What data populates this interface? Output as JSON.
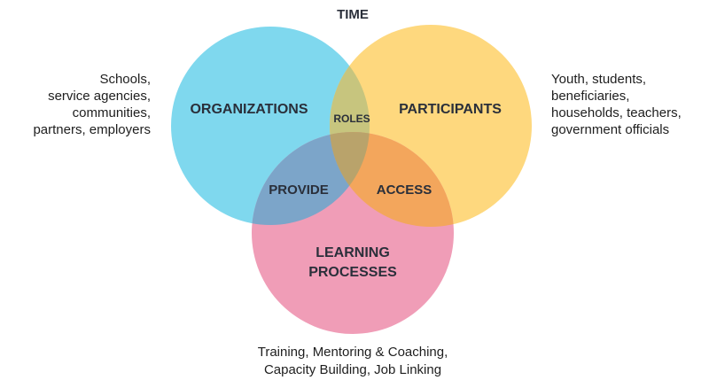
{
  "diagram": {
    "top_label": "TIME",
    "sets": {
      "organizations": {
        "label": "ORGANIZATIONS",
        "color": "#7fd8ee",
        "description": [
          "Schools,",
          "service agencies,",
          "communities,",
          "partners, employers"
        ]
      },
      "participants": {
        "label": "PARTICIPANTS",
        "color": "#fed87e",
        "description": [
          "Youth, students,",
          "beneficiaries,",
          "households, teachers,",
          "government officials"
        ]
      },
      "learning_processes": {
        "label": [
          "LEARNING",
          "PROCESSES"
        ],
        "color": "#f09db7",
        "description": [
          "Training, Mentoring & Coaching,",
          "Capacity Building, Job Linking"
        ]
      }
    },
    "intersections": {
      "roles": {
        "label": "ROLES",
        "color": "#c7c57e"
      },
      "provide": {
        "label": "PROVIDE",
        "color": "#7ca5c9"
      },
      "access": {
        "label": "ACCESS",
        "color": "#f3a65c"
      },
      "center": {
        "color": "#b9a36b"
      }
    }
  }
}
